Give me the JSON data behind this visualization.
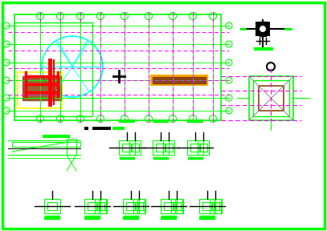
{
  "bg": "#ffffff",
  "GREEN": "#00ff00",
  "CYAN": "#00ffff",
  "MAGENTA": "#ff00ff",
  "RED": "#ff0000",
  "YELLOW": "#ffff00",
  "BLACK": "#000000",
  "BROWN": "#8B4513",
  "ORANGE": "#ffaa00",
  "GRAY": "#aaaaaa",
  "fig_w": 4.07,
  "fig_h": 2.88,
  "dpi": 100
}
